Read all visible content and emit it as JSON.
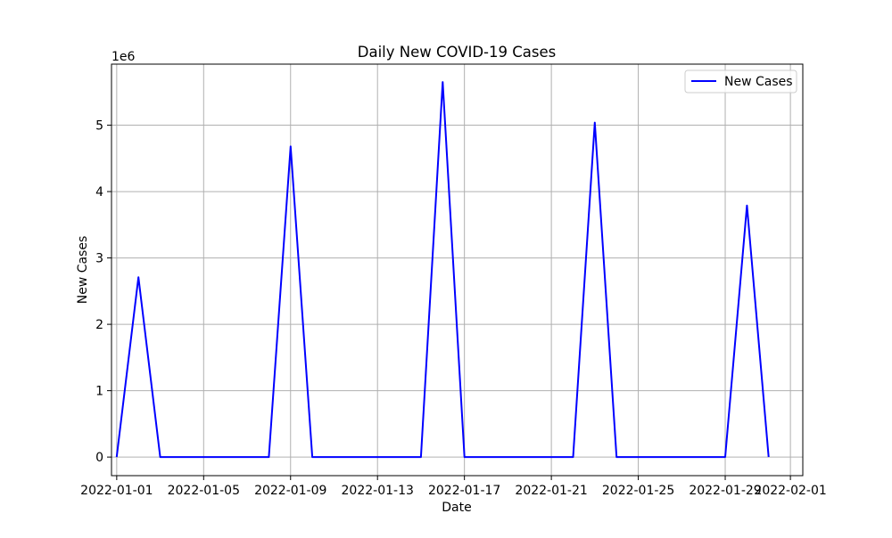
{
  "chart_data": {
    "type": "line",
    "title": "Daily New COVID-19 Cases",
    "xlabel": "Date",
    "ylabel": "New Cases",
    "y_offset_label": "1e6",
    "x_tick_labels": [
      "2022-01-01",
      "2022-01-05",
      "2022-01-09",
      "2022-01-13",
      "2022-01-17",
      "2022-01-21",
      "2022-01-25",
      "2022-01-29",
      "2022-02-01"
    ],
    "y_tick_labels": [
      "0",
      "1",
      "2",
      "3",
      "4",
      "5"
    ],
    "y_ticks": [
      0,
      1000000,
      2000000,
      3000000,
      4000000,
      5000000
    ],
    "xlim": [
      "2021-12-31",
      "2022-02-01"
    ],
    "ylim": [
      -280000,
      5920000
    ],
    "grid": true,
    "legend_position": "top-right",
    "series": [
      {
        "name": "New Cases",
        "color": "#0000ff",
        "x": [
          "2022-01-01",
          "2022-01-02",
          "2022-01-03",
          "2022-01-04",
          "2022-01-05",
          "2022-01-06",
          "2022-01-07",
          "2022-01-08",
          "2022-01-09",
          "2022-01-10",
          "2022-01-11",
          "2022-01-12",
          "2022-01-13",
          "2022-01-14",
          "2022-01-15",
          "2022-01-16",
          "2022-01-17",
          "2022-01-18",
          "2022-01-19",
          "2022-01-20",
          "2022-01-21",
          "2022-01-22",
          "2022-01-23",
          "2022-01-24",
          "2022-01-25",
          "2022-01-26",
          "2022-01-27",
          "2022-01-28",
          "2022-01-29",
          "2022-01-30",
          "2022-01-31"
        ],
        "y": [
          0,
          2710000,
          0,
          0,
          0,
          0,
          0,
          0,
          4680000,
          0,
          0,
          0,
          0,
          0,
          0,
          5650000,
          0,
          0,
          0,
          0,
          0,
          0,
          5040000,
          0,
          0,
          0,
          0,
          0,
          0,
          3790000,
          0
        ]
      }
    ]
  }
}
